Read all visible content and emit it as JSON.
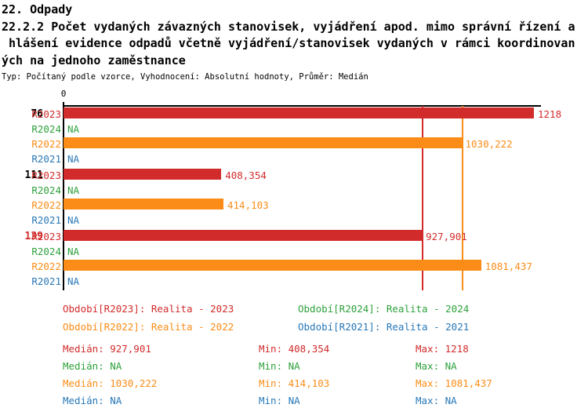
{
  "header": {
    "line1": "22. Odpady",
    "line2": "22.2.2 Počet vydaných závazných stanovisek, vyjádření apod. mimo správní řízení a",
    "line3": " hlášení evidence odpadů včetně vyjádření/stanovisek vydaných v rámci koordinovan",
    "line4": "ých na jednoho zaměstnance",
    "typ_line": "Typ: Počítaný podle vzorce, Vyhodnocení: Absolutní hodnoty, Průměr: Medián"
  },
  "colors": {
    "red": "#d22b2b",
    "orange": "#fb8c17",
    "green": "#2ea13c",
    "blue": "#2878b8",
    "black": "#000000"
  },
  "chart_data": {
    "type": "bar",
    "orientation": "horizontal",
    "title": "22.2.2 Počet vydaných závazných stanovisek, vyjádření apod. mimo správní řízení a hlášení evidence odpadů včetně vyjádření/stanovisek vydaných v rámci koordinovaných na jednoho zaměstnance",
    "axis": {
      "zero_label": "0",
      "xmin": 0,
      "xmax_value": 1218
    },
    "categories": [
      "76",
      "111",
      "139"
    ],
    "groups": [
      {
        "label": "76",
        "label_color": "#000000",
        "rows": [
          {
            "series": "R2023",
            "color": "#d22b2b",
            "value": 1218,
            "value_label": "1218"
          },
          {
            "series": "R2024",
            "color": "#2ea13c",
            "value": null,
            "value_label": "NA"
          },
          {
            "series": "R2022",
            "color": "#fb8c17",
            "value": 1030.222,
            "value_label": "1030,222"
          },
          {
            "series": "R2021",
            "color": "#2878b8",
            "value": null,
            "value_label": "NA"
          }
        ]
      },
      {
        "label": "111",
        "label_color": "#000000",
        "rows": [
          {
            "series": "R2023",
            "color": "#d22b2b",
            "value": 408.354,
            "value_label": "408,354"
          },
          {
            "series": "R2024",
            "color": "#2ea13c",
            "value": null,
            "value_label": "NA"
          },
          {
            "series": "R2022",
            "color": "#fb8c17",
            "value": 414.103,
            "value_label": "414,103"
          },
          {
            "series": "R2021",
            "color": "#2878b8",
            "value": null,
            "value_label": "NA"
          }
        ]
      },
      {
        "label": "139",
        "label_color": "#d22b2b",
        "rows": [
          {
            "series": "R2023",
            "color": "#d22b2b",
            "value": 927.901,
            "value_label": "927,901"
          },
          {
            "series": "R2024",
            "color": "#2ea13c",
            "value": null,
            "value_label": "NA"
          },
          {
            "series": "R2022",
            "color": "#fb8c17",
            "value": 1081.437,
            "value_label": "1081,437"
          },
          {
            "series": "R2021",
            "color": "#2878b8",
            "value": null,
            "value_label": "NA"
          }
        ]
      }
    ],
    "median_lines": [
      {
        "series": "R2023",
        "value": 927.901,
        "color": "#d22b2b"
      },
      {
        "series": "R2022",
        "value": 1030.222,
        "color": "#fb8c17"
      }
    ],
    "legend": [
      {
        "text": "Období[R2023]: Realita - 2023",
        "color": "#d22b2b"
      },
      {
        "text": "Období[R2024]: Realita - 2024",
        "color": "#2ea13c"
      },
      {
        "text": "Období[R2022]: Realita - 2022",
        "color": "#fb8c17"
      },
      {
        "text": "Období[R2021]: Realita - 2021",
        "color": "#2878b8"
      }
    ],
    "stats": [
      {
        "color": "#d22b2b",
        "cells": [
          "Medián: 927,901",
          "Min: 408,354",
          "Max: 1218"
        ]
      },
      {
        "color": "#2ea13c",
        "cells": [
          "Medián: NA",
          "Min: NA",
          "Max: NA"
        ]
      },
      {
        "color": "#fb8c17",
        "cells": [
          "Medián: 1030,222",
          "Min: 414,103",
          "Max: 1081,437"
        ]
      },
      {
        "color": "#2878b8",
        "cells": [
          "Medián: NA",
          "Min: NA",
          "Max: NA"
        ]
      }
    ]
  }
}
